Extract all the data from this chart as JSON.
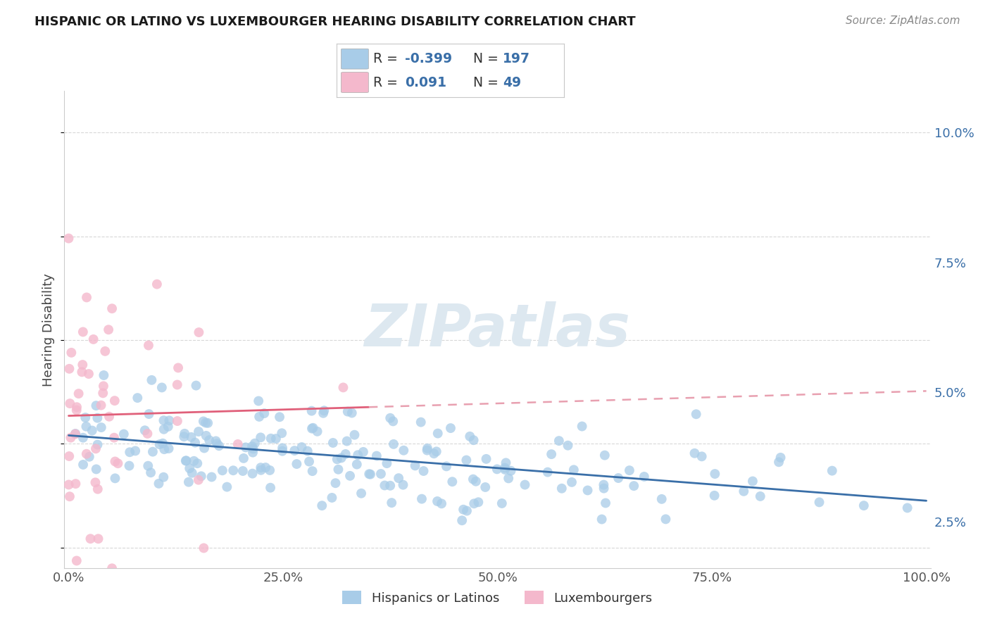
{
  "title": "HISPANIC OR LATINO VS LUXEMBOURGER HEARING DISABILITY CORRELATION CHART",
  "source": "Source: ZipAtlas.com",
  "ylabel": "Hearing Disability",
  "legend_blue_r": "-0.399",
  "legend_blue_n": "197",
  "legend_pink_r": "0.091",
  "legend_pink_n": "49",
  "blue_scatter_color": "#a8cce8",
  "pink_scatter_color": "#f4b8cc",
  "blue_line_color": "#3a6fa8",
  "pink_line_solid_color": "#e0607a",
  "pink_line_dash_color": "#e8a0b0",
  "background_color": "#ffffff",
  "grid_color": "#d8d8d8",
  "legend_text_color": "#3a6fa8",
  "legend_label_color": "#333333",
  "watermark_color": "#dde8f0",
  "ytick_color": "#3a6fa8",
  "xtick_color": "#555555",
  "xlim_min": -0.005,
  "xlim_max": 1.005,
  "ylim_min": 0.016,
  "ylim_max": 0.108,
  "ytick_vals": [
    0.025,
    0.05,
    0.075,
    0.1
  ],
  "ytick_labels": [
    "2.5%",
    "5.0%",
    "7.5%",
    "10.0%"
  ],
  "xtick_vals": [
    0.0,
    0.25,
    0.5,
    0.75,
    1.0
  ],
  "xtick_labels": [
    "0.0%",
    "25.0%",
    "50.0%",
    "75.0%",
    "100.0%"
  ],
  "blue_n": 197,
  "pink_n": 49,
  "blue_seed": 42,
  "pink_seed": 7
}
